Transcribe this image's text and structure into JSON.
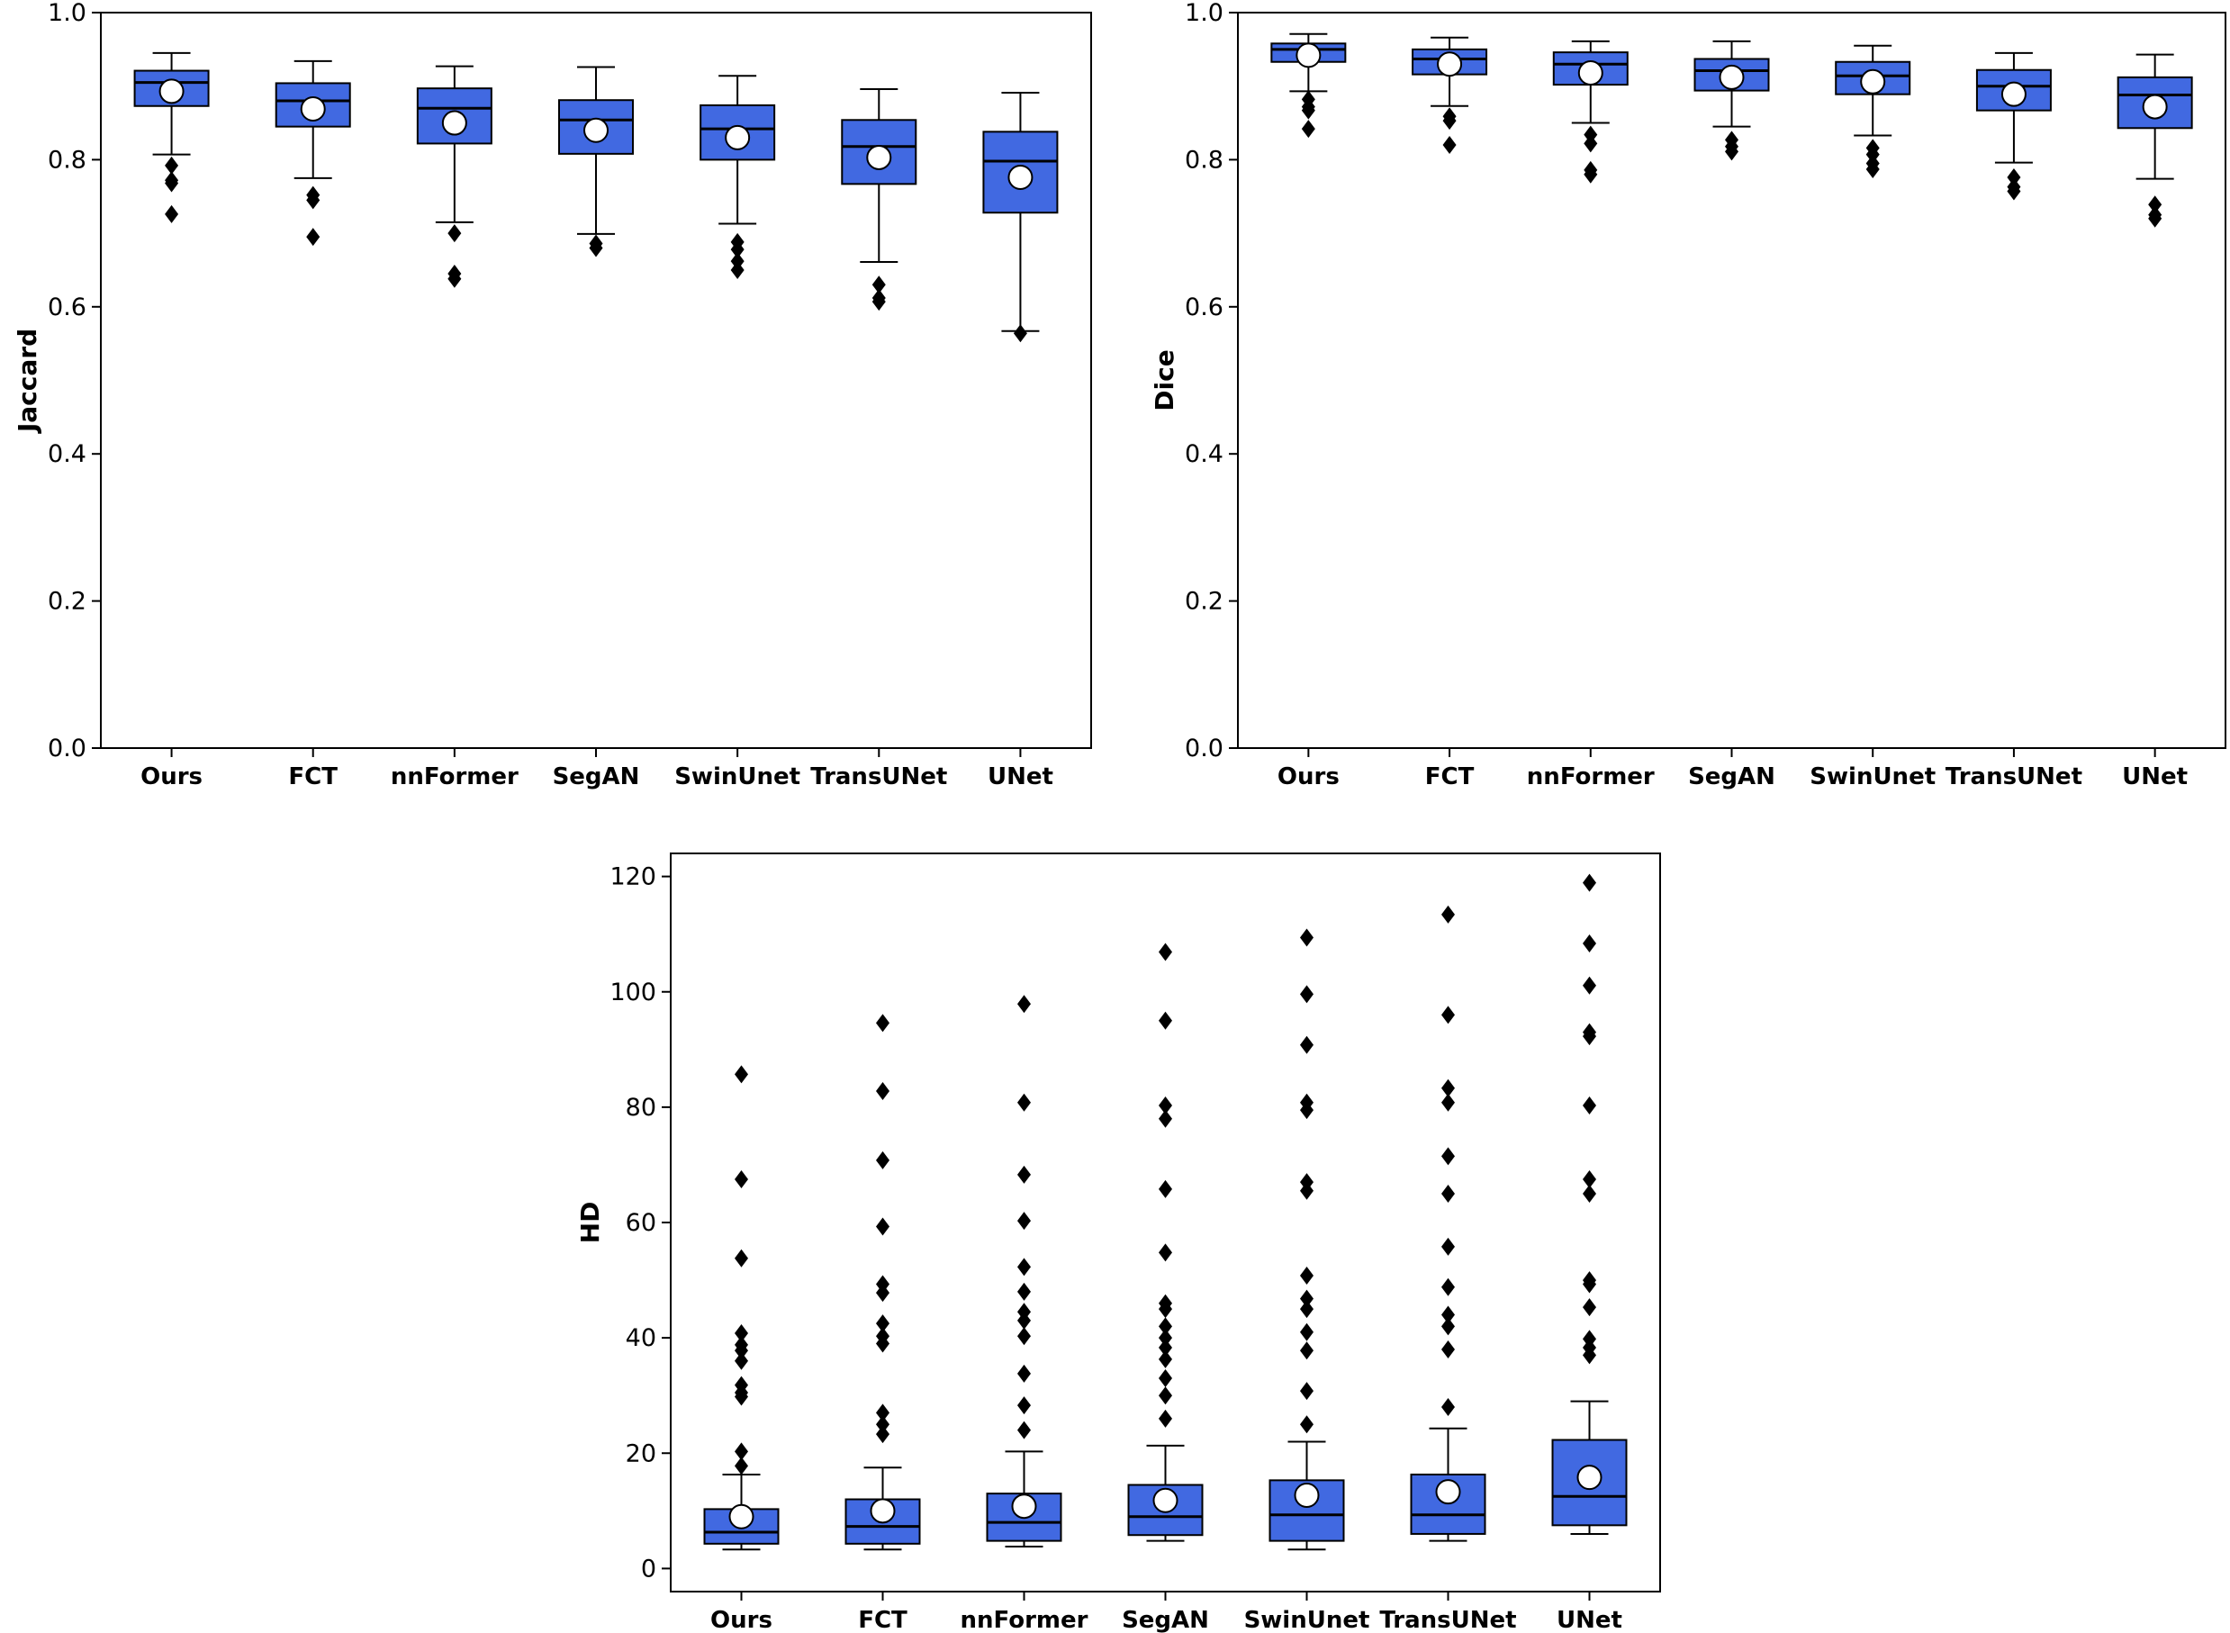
{
  "colors": {
    "box_fill": "#4169e1",
    "edge": "#000000",
    "mean_fill": "#ffffff",
    "flier": "#000000",
    "background": "#ffffff"
  },
  "chart_data": [
    {
      "id": "jaccard",
      "type": "box",
      "ylabel": "Jaccard",
      "ylim": [
        0.0,
        1.0
      ],
      "yticks": [
        0.0,
        0.2,
        0.4,
        0.6,
        0.8,
        1.0
      ],
      "ytick_labels": [
        "0.0",
        "0.2",
        "0.4",
        "0.6",
        "0.8",
        "1.0"
      ],
      "categories": [
        "Ours",
        "FCT",
        "nnFormer",
        "SegAN",
        "SwinUnet",
        "TransUNet",
        "UNet"
      ],
      "boxes": [
        {
          "whislo": 0.807,
          "q1": 0.873,
          "med": 0.905,
          "q3": 0.921,
          "whishi": 0.945,
          "mean": 0.893,
          "fliers": [
            0.792,
            0.772,
            0.768,
            0.726
          ]
        },
        {
          "whislo": 0.775,
          "q1": 0.845,
          "med": 0.88,
          "q3": 0.904,
          "whishi": 0.934,
          "mean": 0.869,
          "fliers": [
            0.752,
            0.745,
            0.695
          ]
        },
        {
          "whislo": 0.715,
          "q1": 0.822,
          "med": 0.87,
          "q3": 0.897,
          "whishi": 0.927,
          "mean": 0.85,
          "fliers": [
            0.7,
            0.645,
            0.638
          ]
        },
        {
          "whislo": 0.699,
          "q1": 0.808,
          "med": 0.854,
          "q3": 0.881,
          "whishi": 0.926,
          "mean": 0.84,
          "fliers": [
            0.686,
            0.68
          ]
        },
        {
          "whislo": 0.713,
          "q1": 0.8,
          "med": 0.842,
          "q3": 0.874,
          "whishi": 0.914,
          "mean": 0.83,
          "fliers": [
            0.688,
            0.678,
            0.662,
            0.65
          ]
        },
        {
          "whislo": 0.661,
          "q1": 0.767,
          "med": 0.818,
          "q3": 0.854,
          "whishi": 0.896,
          "mean": 0.803,
          "fliers": [
            0.63,
            0.612,
            0.607
          ]
        },
        {
          "whislo": 0.567,
          "q1": 0.728,
          "med": 0.798,
          "q3": 0.838,
          "whishi": 0.891,
          "mean": 0.776,
          "fliers": [
            0.564
          ]
        }
      ]
    },
    {
      "id": "dice",
      "type": "box",
      "ylabel": "Dice",
      "ylim": [
        0.0,
        1.0
      ],
      "yticks": [
        0.0,
        0.2,
        0.4,
        0.6,
        0.8,
        1.0
      ],
      "ytick_labels": [
        "0.0",
        "0.2",
        "0.4",
        "0.6",
        "0.8",
        "1.0"
      ],
      "categories": [
        "Ours",
        "FCT",
        "nnFormer",
        "SegAN",
        "SwinUnet",
        "TransUNet",
        "UNet"
      ],
      "boxes": [
        {
          "whislo": 0.893,
          "q1": 0.933,
          "med": 0.95,
          "q3": 0.958,
          "whishi": 0.971,
          "mean": 0.942,
          "fliers": [
            0.882,
            0.872,
            0.867,
            0.842
          ]
        },
        {
          "whislo": 0.873,
          "q1": 0.916,
          "med": 0.937,
          "q3": 0.95,
          "whishi": 0.966,
          "mean": 0.93,
          "fliers": [
            0.859,
            0.853,
            0.82
          ]
        },
        {
          "whislo": 0.85,
          "q1": 0.902,
          "med": 0.93,
          "q3": 0.946,
          "whishi": 0.961,
          "mean": 0.918,
          "fliers": [
            0.834,
            0.822,
            0.786,
            0.78
          ]
        },
        {
          "whislo": 0.845,
          "q1": 0.894,
          "med": 0.921,
          "q3": 0.937,
          "whishi": 0.961,
          "mean": 0.912,
          "fliers": [
            0.827,
            0.818,
            0.811
          ]
        },
        {
          "whislo": 0.833,
          "q1": 0.889,
          "med": 0.914,
          "q3": 0.933,
          "whishi": 0.955,
          "mean": 0.906,
          "fliers": [
            0.816,
            0.807,
            0.795,
            0.787
          ]
        },
        {
          "whislo": 0.796,
          "q1": 0.867,
          "med": 0.9,
          "q3": 0.922,
          "whishi": 0.945,
          "mean": 0.889,
          "fliers": [
            0.776,
            0.763,
            0.757
          ]
        },
        {
          "whislo": 0.774,
          "q1": 0.843,
          "med": 0.888,
          "q3": 0.912,
          "whishi": 0.943,
          "mean": 0.872,
          "fliers": [
            0.739,
            0.725,
            0.72
          ]
        }
      ]
    },
    {
      "id": "hd",
      "type": "box",
      "ylabel": "HD",
      "ylim": [
        -4.0,
        124.0
      ],
      "yticks": [
        0,
        20,
        40,
        60,
        80,
        100,
        120
      ],
      "ytick_labels": [
        "0",
        "20",
        "40",
        "60",
        "80",
        "100",
        "120"
      ],
      "categories": [
        "Ours",
        "FCT",
        "nnFormer",
        "SegAN",
        "SwinUnet",
        "TransUNet",
        "UNet"
      ],
      "boxes": [
        {
          "whislo": 3.3,
          "q1": 4.3,
          "med": 6.3,
          "q3": 10.3,
          "whishi": 16.3,
          "mean": 9.0,
          "fliers": [
            85.7,
            67.5,
            53.8,
            40.8,
            38.8,
            37.8,
            36.0,
            31.8,
            30.5,
            29.8,
            20.3,
            17.8
          ]
        },
        {
          "whislo": 3.3,
          "q1": 4.3,
          "med": 7.3,
          "q3": 12.0,
          "whishi": 17.5,
          "mean": 10.0,
          "fliers": [
            94.6,
            82.8,
            70.8,
            59.3,
            49.3,
            47.8,
            42.5,
            40.3,
            39.0,
            27.0,
            25.0,
            23.3
          ]
        },
        {
          "whislo": 3.8,
          "q1": 4.8,
          "med": 8.0,
          "q3": 13.0,
          "whishi": 20.3,
          "mean": 10.8,
          "fliers": [
            97.9,
            80.8,
            68.3,
            60.3,
            52.3,
            48.0,
            44.5,
            43.0,
            40.3,
            33.8,
            28.3,
            24.0
          ]
        },
        {
          "whislo": 4.8,
          "q1": 5.8,
          "med": 9.0,
          "q3": 14.5,
          "whishi": 21.3,
          "mean": 11.8,
          "fliers": [
            106.9,
            95.0,
            80.3,
            78.0,
            65.8,
            54.8,
            46.0,
            45.0,
            42.0,
            40.0,
            38.3,
            36.3,
            33.0,
            30.0,
            26.0
          ]
        },
        {
          "whislo": 3.3,
          "q1": 4.8,
          "med": 9.3,
          "q3": 15.3,
          "whishi": 22.0,
          "mean": 12.7,
          "fliers": [
            109.4,
            99.6,
            90.8,
            80.8,
            79.5,
            67.0,
            65.5,
            50.8,
            46.8,
            45.0,
            41.0,
            37.8,
            30.8,
            25.0
          ]
        },
        {
          "whislo": 4.8,
          "q1": 6.0,
          "med": 9.3,
          "q3": 16.3,
          "whishi": 24.3,
          "mean": 13.3,
          "fliers": [
            113.4,
            96.0,
            83.3,
            80.8,
            71.5,
            65.0,
            55.8,
            48.8,
            44.0,
            42.0,
            38.0,
            28.0
          ]
        },
        {
          "whislo": 6.0,
          "q1": 7.5,
          "med": 12.5,
          "q3": 22.3,
          "whishi": 29.0,
          "mean": 15.8,
          "fliers": [
            118.9,
            108.4,
            101.1,
            93.0,
            92.3,
            80.3,
            67.5,
            65.0,
            50.0,
            49.3,
            45.3,
            39.8,
            38.3,
            37.0
          ]
        }
      ]
    }
  ]
}
